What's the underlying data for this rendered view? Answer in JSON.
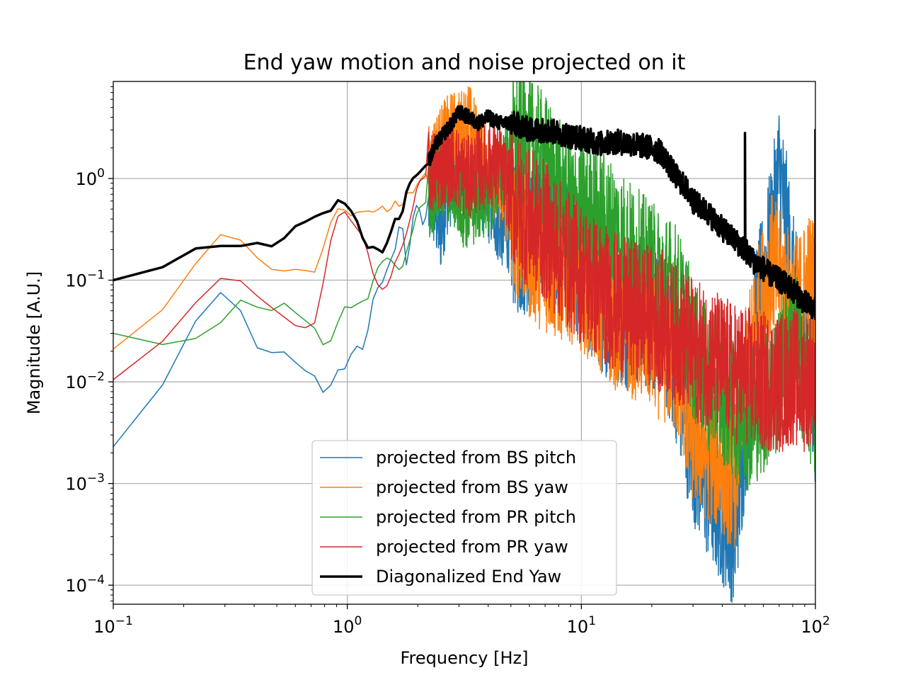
{
  "chart_data": {
    "type": "line",
    "title": "End yaw motion and noise projected on it",
    "xlabel": "Frequency [Hz]",
    "ylabel": "Magnitude [A.U.]",
    "xscale": "log",
    "yscale": "log",
    "xlim": [
      0.1,
      100
    ],
    "ylim": [
      6.5e-05,
      9
    ],
    "grid": true,
    "legend_position": "lower-center",
    "x_ticks": [
      {
        "value": 0.1,
        "base": "10",
        "exp": "−1"
      },
      {
        "value": 1,
        "base": "10",
        "exp": "0"
      },
      {
        "value": 10,
        "base": "10",
        "exp": "1"
      },
      {
        "value": 100,
        "base": "10",
        "exp": "2"
      }
    ],
    "y_ticks": [
      {
        "value": 0.0001,
        "base": "10",
        "exp": "−4"
      },
      {
        "value": 0.001,
        "base": "10",
        "exp": "−3"
      },
      {
        "value": 0.01,
        "base": "10",
        "exp": "−2"
      },
      {
        "value": 0.1,
        "base": "10",
        "exp": "−1"
      },
      {
        "value": 1,
        "base": "10",
        "exp": "0"
      }
    ],
    "series": [
      {
        "name": "projected from BS pitch",
        "color": "#1f77b4",
        "width": 1.5,
        "x": [
          0.1,
          0.125,
          0.19,
          0.25,
          0.31,
          0.37,
          0.44,
          0.5,
          0.56,
          0.63,
          0.69,
          0.75,
          0.81,
          0.88,
          0.94,
          1.0,
          1.06,
          1.13,
          1.19,
          1.25,
          1.31,
          1.4,
          1.5,
          1.6,
          1.7,
          1.8,
          1.9,
          2.0,
          2.1,
          2.3,
          2.5,
          2.7,
          3.0,
          3.3,
          3.6,
          4.0,
          4.5,
          5.0,
          5.5,
          6.0,
          7.0,
          8.0,
          9.0,
          10,
          12,
          14,
          16,
          18,
          20,
          22,
          25,
          28,
          30,
          35,
          40,
          45,
          50,
          55,
          60,
          65,
          70,
          75,
          80,
          85,
          90,
          95,
          100
        ],
        "y": [
          0.0023,
          0.0031,
          0.018,
          0.065,
          0.082,
          0.04,
          0.015,
          0.023,
          0.018,
          0.014,
          0.012,
          0.011,
          0.0065,
          0.012,
          0.014,
          0.013,
          0.023,
          0.022,
          0.02,
          0.045,
          0.08,
          0.09,
          0.14,
          0.2,
          0.45,
          0.12,
          0.4,
          0.6,
          0.35,
          0.6,
          0.3,
          0.8,
          1.2,
          1.8,
          0.9,
          0.6,
          0.35,
          0.3,
          0.2,
          0.25,
          0.35,
          0.25,
          0.25,
          0.1,
          0.06,
          0.05,
          0.04,
          0.05,
          0.035,
          0.03,
          0.015,
          0.004,
          0.002,
          0.0008,
          0.0005,
          0.0003,
          0.003,
          0.04,
          0.1,
          0.3,
          1.2,
          0.4,
          0.1,
          0.04,
          0.02,
          0.01,
          0.005
        ],
        "jitter": 1.0
      },
      {
        "name": "projected from BS yaw",
        "color": "#ff7f0e",
        "width": 1.5,
        "x": [
          0.1,
          0.125,
          0.19,
          0.25,
          0.31,
          0.37,
          0.44,
          0.5,
          0.56,
          0.63,
          0.69,
          0.75,
          0.81,
          0.88,
          0.94,
          1.0,
          1.06,
          1.13,
          1.19,
          1.25,
          1.31,
          1.4,
          1.5,
          1.6,
          1.7,
          1.8,
          1.9,
          2.0,
          2.2,
          2.4,
          2.6,
          2.8,
          3.0,
          3.3,
          3.6,
          4.0,
          4.5,
          5.0,
          5.5,
          6.0,
          7.0,
          8.0,
          9.0,
          10,
          12,
          14,
          16,
          18,
          20,
          22,
          25,
          28,
          30,
          35,
          40,
          45,
          50,
          55,
          60,
          65,
          70,
          75,
          80,
          85,
          90,
          95,
          100
        ],
        "y": [
          0.021,
          0.027,
          0.075,
          0.22,
          0.32,
          0.22,
          0.14,
          0.12,
          0.125,
          0.13,
          0.12,
          0.12,
          0.28,
          0.45,
          0.55,
          0.45,
          0.42,
          0.5,
          0.45,
          0.5,
          0.45,
          0.55,
          0.45,
          0.6,
          0.5,
          0.75,
          0.7,
          0.9,
          1.2,
          1.8,
          2.3,
          2.8,
          2.8,
          3.5,
          2.0,
          1.3,
          0.8,
          0.4,
          0.3,
          0.2,
          0.15,
          0.12,
          0.12,
          0.1,
          0.06,
          0.04,
          0.035,
          0.03,
          0.025,
          0.02,
          0.015,
          0.006,
          0.003,
          0.002,
          0.0015,
          0.001,
          0.01,
          0.03,
          0.08,
          0.15,
          0.1,
          0.08,
          0.05,
          0.06,
          0.08,
          0.1,
          0.08
        ],
        "jitter": 1.0
      },
      {
        "name": "projected from PR pitch",
        "color": "#2ca02c",
        "width": 1.5,
        "x": [
          0.1,
          0.125,
          0.19,
          0.25,
          0.31,
          0.37,
          0.44,
          0.5,
          0.56,
          0.63,
          0.69,
          0.75,
          0.81,
          0.88,
          0.94,
          1.0,
          1.06,
          1.13,
          1.19,
          1.25,
          1.31,
          1.4,
          1.5,
          1.6,
          1.7,
          1.8,
          1.9,
          2.0,
          2.2,
          2.4,
          2.6,
          2.8,
          3.0,
          3.3,
          3.6,
          4.0,
          4.5,
          5.0,
          5.5,
          6.0,
          7.0,
          8.0,
          9.0,
          10,
          12,
          14,
          16,
          18,
          20,
          22,
          25,
          28,
          30,
          35,
          40,
          45,
          50,
          55,
          60,
          65,
          70,
          75,
          80,
          85,
          90,
          95,
          100
        ],
        "y": [
          0.03,
          0.03,
          0.02,
          0.032,
          0.042,
          0.077,
          0.044,
          0.055,
          0.062,
          0.04,
          0.04,
          0.03,
          0.02,
          0.03,
          0.048,
          0.06,
          0.05,
          0.065,
          0.06,
          0.07,
          0.12,
          0.15,
          0.17,
          0.14,
          0.12,
          0.2,
          0.3,
          0.5,
          0.6,
          0.8,
          1.0,
          0.9,
          0.6,
          0.5,
          0.6,
          0.7,
          1.2,
          1.8,
          2.5,
          2.0,
          1.4,
          0.8,
          0.5,
          0.5,
          0.4,
          0.3,
          0.2,
          0.15,
          0.12,
          0.1,
          0.08,
          0.04,
          0.02,
          0.01,
          0.008,
          0.005,
          0.004,
          0.005,
          0.006,
          0.008,
          0.01,
          0.02,
          0.03,
          0.02,
          0.01,
          0.008,
          0.005
        ],
        "jitter": 1.0
      },
      {
        "name": "projected from PR yaw",
        "color": "#d62728",
        "width": 1.5,
        "x": [
          0.1,
          0.125,
          0.19,
          0.25,
          0.31,
          0.37,
          0.44,
          0.5,
          0.56,
          0.63,
          0.69,
          0.75,
          0.81,
          0.88,
          0.94,
          1.0,
          1.06,
          1.13,
          1.19,
          1.25,
          1.31,
          1.4,
          1.5,
          1.6,
          1.7,
          1.8,
          1.9,
          2.0,
          2.2,
          2.4,
          2.6,
          2.8,
          3.0,
          3.3,
          3.6,
          4.0,
          4.5,
          5.0,
          5.5,
          6.0,
          7.0,
          8.0,
          9.0,
          10,
          12,
          14,
          16,
          18,
          20,
          22,
          25,
          28,
          30,
          35,
          40,
          45,
          50,
          55,
          60,
          65,
          70,
          75,
          80,
          85,
          90,
          95,
          100
        ],
        "y": [
          0.0105,
          0.0125,
          0.038,
          0.08,
          0.12,
          0.09,
          0.06,
          0.05,
          0.04,
          0.033,
          0.035,
          0.04,
          0.15,
          0.35,
          0.5,
          0.45,
          0.35,
          0.3,
          0.25,
          0.15,
          0.1,
          0.08,
          0.09,
          0.15,
          0.2,
          0.3,
          0.5,
          0.9,
          1.1,
          1.2,
          1.3,
          1.5,
          1.2,
          1.0,
          1.2,
          1.4,
          1.3,
          0.7,
          0.5,
          0.4,
          0.3,
          0.2,
          0.15,
          0.12,
          0.08,
          0.06,
          0.05,
          0.05,
          0.045,
          0.04,
          0.03,
          0.025,
          0.02,
          0.018,
          0.015,
          0.012,
          0.012,
          0.01,
          0.01,
          0.01,
          0.01,
          0.01,
          0.012,
          0.01,
          0.01,
          0.012,
          0.012
        ],
        "jitter": 1.0
      },
      {
        "name": "Diagonalized End Yaw",
        "color": "#000000",
        "width": 3.5,
        "x": [
          0.1,
          0.125,
          0.19,
          0.25,
          0.31,
          0.37,
          0.44,
          0.5,
          0.56,
          0.63,
          0.69,
          0.75,
          0.81,
          0.88,
          0.94,
          1.0,
          1.06,
          1.13,
          1.19,
          1.25,
          1.31,
          1.4,
          1.5,
          1.6,
          1.7,
          1.8,
          1.9,
          2.0,
          2.2,
          2.4,
          2.6,
          2.8,
          3.0,
          3.3,
          3.6,
          4.0,
          4.5,
          5.0,
          5.5,
          6.0,
          7.0,
          8.0,
          9.0,
          10,
          12,
          14,
          16,
          18,
          20,
          22,
          25,
          28,
          30,
          35,
          40,
          45,
          50,
          55,
          60,
          65,
          70,
          75,
          80,
          85,
          90,
          95,
          100
        ],
        "y": [
          0.1,
          0.09,
          0.17,
          0.23,
          0.21,
          0.22,
          0.24,
          0.2,
          0.3,
          0.37,
          0.38,
          0.45,
          0.46,
          0.5,
          0.72,
          0.48,
          0.48,
          0.32,
          0.22,
          0.2,
          0.22,
          0.18,
          0.25,
          0.4,
          0.4,
          0.8,
          1.0,
          1.1,
          1.4,
          2.2,
          2.8,
          3.5,
          4.5,
          4.0,
          3.5,
          4.0,
          3.5,
          3.5,
          3.3,
          3.0,
          3.0,
          2.8,
          2.6,
          2.5,
          2.2,
          2.3,
          2.2,
          2.1,
          2.0,
          1.8,
          1.1,
          0.8,
          0.6,
          0.45,
          0.32,
          0.25,
          0.2,
          0.15,
          0.13,
          0.11,
          0.1,
          0.09,
          0.08,
          0.07,
          0.06,
          0.055,
          0.05
        ],
        "jitter": 0.35,
        "spikes": [
          {
            "x": 50,
            "y": 2.8
          },
          {
            "x": 100,
            "y": 3.0
          }
        ]
      }
    ]
  }
}
